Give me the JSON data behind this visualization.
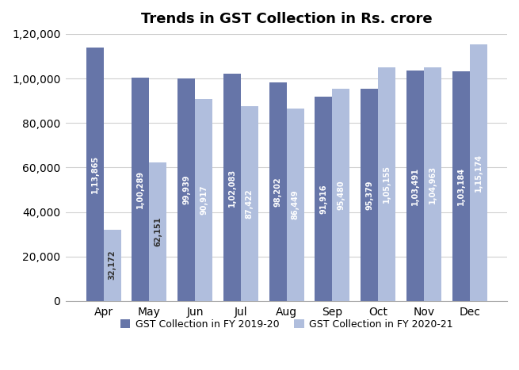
{
  "title": "Trends in GST Collection in Rs. crore",
  "months": [
    "Apr",
    "May",
    "Jun",
    "Jul",
    "Aug",
    "Sep",
    "Oct",
    "Nov",
    "Dec"
  ],
  "fy2019_20": [
    113865,
    100289,
    99939,
    102083,
    98202,
    91916,
    95379,
    103491,
    103184
  ],
  "fy2020_21": [
    32172,
    62151,
    90917,
    87422,
    86449,
    95480,
    105155,
    104963,
    115174
  ],
  "fy2019_20_labels": [
    "1,13,865",
    "1,00,289",
    "99,939",
    "1,02,083",
    "98,202",
    "91,916",
    "95,379",
    "1,03,491",
    "1,03,184"
  ],
  "fy2020_21_labels": [
    "32,172",
    "62,151",
    "90,917",
    "87,422",
    "86,449",
    "95,480",
    "1,05,155",
    "1,04,963",
    "1,15,174"
  ],
  "color_2019": "#6675a8",
  "color_2020": "#b0bedd",
  "legend_2019": "GST Collection in FY 2019-20",
  "legend_2020": "GST Collection in FY 2020-21",
  "ylim": [
    0,
    120000
  ],
  "yticks": [
    0,
    20000,
    40000,
    60000,
    80000,
    100000,
    120000
  ],
  "ytick_labels": [
    "0",
    "20,000",
    "40,000",
    "60,000",
    "80,000",
    "1,00,000",
    "1,20,000"
  ],
  "background_color": "#ffffff",
  "bar_width": 0.38,
  "label_fontsize": 7,
  "title_fontsize": 13,
  "dark_bar_threshold": 80000
}
